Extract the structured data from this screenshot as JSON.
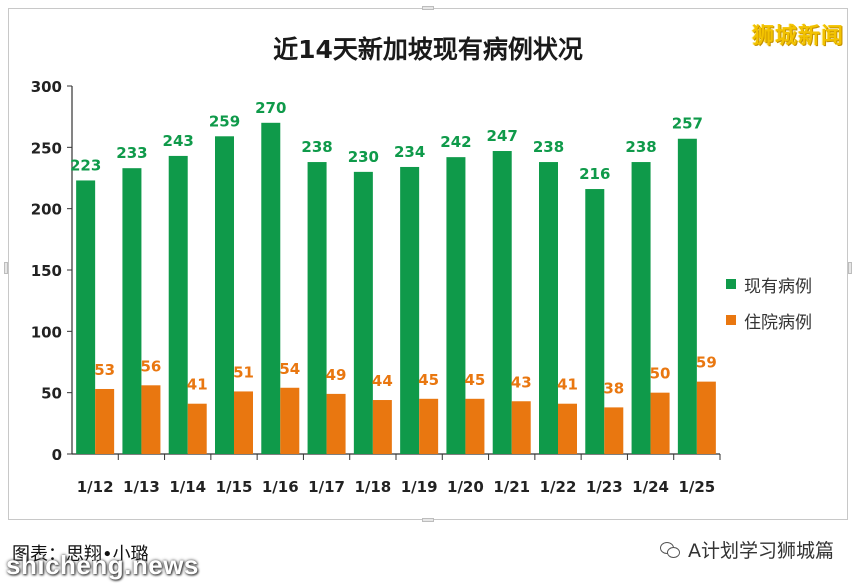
{
  "watermark_top": "狮城新闻",
  "caption": "图表：思翔•小璐",
  "site_watermark": "shicheng.news",
  "wechat_account": "A计划学习狮城篇",
  "colors": {
    "current": "#0f9a4a",
    "hospital": "#e97710",
    "axis": "#333333"
  },
  "chart_data": {
    "type": "bar",
    "title": "近14天新加坡现有病例状况",
    "categories": [
      "1/12",
      "1/13",
      "1/14",
      "1/15",
      "1/16",
      "1/17",
      "1/18",
      "1/19",
      "1/20",
      "1/21",
      "1/22",
      "1/23",
      "1/24",
      "1/25"
    ],
    "series": [
      {
        "name": "现有病例",
        "values": [
          223,
          233,
          243,
          259,
          270,
          238,
          230,
          234,
          242,
          247,
          238,
          216,
          238,
          257
        ]
      },
      {
        "name": "住院病例",
        "values": [
          53,
          56,
          41,
          51,
          54,
          49,
          44,
          45,
          45,
          43,
          41,
          38,
          50,
          59
        ]
      }
    ],
    "ylim": [
      0,
      300
    ],
    "yticks": [
      0,
      50,
      100,
      150,
      200,
      250,
      300
    ],
    "legend_position": "right",
    "grid": false
  }
}
